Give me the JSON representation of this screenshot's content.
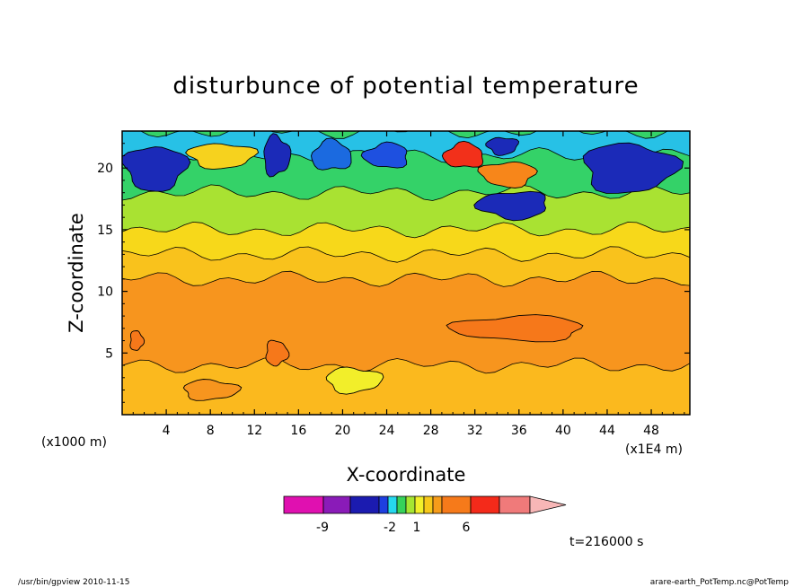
{
  "chart_data": {
    "type": "heatmap",
    "title": "disturbunce of potential temperature",
    "xlabel": "X-coordinate",
    "ylabel": "Z-coordinate",
    "x_ticks": [
      "4",
      "8",
      "12",
      "16",
      "20",
      "24",
      "28",
      "32",
      "36",
      "40",
      "44",
      "48"
    ],
    "x_tick_values": [
      4,
      8,
      12,
      16,
      20,
      24,
      28,
      32,
      36,
      40,
      44,
      48
    ],
    "xlim": [
      0,
      51.5
    ],
    "y_ticks": [
      "5",
      "10",
      "15",
      "20"
    ],
    "y_tick_values": [
      5,
      10,
      15,
      20
    ],
    "ylim": [
      0,
      23
    ],
    "x_unit_left": "(x1000 m)",
    "x_unit_right": "(x1E4 m)",
    "colorbar": {
      "labels": [
        {
          "text": "-9",
          "index": 1
        },
        {
          "text": "-2",
          "index": 4
        },
        {
          "text": "1",
          "index": 6
        },
        {
          "text": "6",
          "index": 8
        }
      ],
      "colors": [
        "#e010b0",
        "#8a1bb8",
        "#1b1bb0",
        "#1e3fe0",
        "#26d8ee",
        "#36d25a",
        "#a6e632",
        "#f2f02a",
        "#f7c81a",
        "#f69c1a",
        "#f67a1a",
        "#f42a1a",
        "#f07a7a",
        "#f7b6b6"
      ]
    },
    "field_bands": [
      {
        "z_top": 4,
        "level": 5,
        "color": "#fbb91e"
      },
      {
        "z_top": 11,
        "level": 4,
        "color": "#f7951e"
      },
      {
        "z_top": 13,
        "level": 3,
        "color": "#f9c21c"
      },
      {
        "z_top": 15,
        "level": 2,
        "color": "#f7d81a"
      },
      {
        "z_top": 18,
        "level": 1,
        "color": "#a9e232"
      },
      {
        "z_top": 21,
        "level": 0,
        "color": "#34d268"
      },
      {
        "z_top": 23,
        "level": -1,
        "color": "#27c1e6"
      }
    ],
    "features": [
      {
        "x": 3,
        "z": 20,
        "rx": 2.8,
        "rz": 1.8,
        "color": "#1b2ab8",
        "value": -6
      },
      {
        "x": 9,
        "z": 21,
        "rx": 3.0,
        "rz": 1.0,
        "color": "#f6d21e",
        "value": 1
      },
      {
        "x": 14,
        "z": 21,
        "rx": 1.2,
        "rz": 1.6,
        "color": "#1b2ab8",
        "value": -6
      },
      {
        "x": 19,
        "z": 21,
        "rx": 1.8,
        "rz": 1.2,
        "color": "#1b6ae0",
        "value": -4
      },
      {
        "x": 24,
        "z": 21,
        "rx": 2.0,
        "rz": 1.0,
        "color": "#1e50e0",
        "value": -4
      },
      {
        "x": 31,
        "z": 21,
        "rx": 1.8,
        "rz": 1.0,
        "color": "#f2301a",
        "value": 8
      },
      {
        "x": 35,
        "z": 19.5,
        "rx": 2.5,
        "rz": 1.0,
        "color": "#f7861a",
        "value": 5
      },
      {
        "x": 34.5,
        "z": 21.8,
        "rx": 1.4,
        "rz": 0.7,
        "color": "#1b2ab8",
        "value": -6
      },
      {
        "x": 35.5,
        "z": 17,
        "rx": 3.2,
        "rz": 1.1,
        "color": "#1b2ab8",
        "value": -6
      },
      {
        "x": 46,
        "z": 20,
        "rx": 4.2,
        "rz": 2.0,
        "color": "#1b2ab8",
        "value": -6
      },
      {
        "x": 36,
        "z": 7,
        "rx": 6,
        "rz": 1.0,
        "color": "#f6781a",
        "value": 5
      },
      {
        "x": 21,
        "z": 2.8,
        "rx": 2.5,
        "rz": 1.0,
        "color": "#f2ee2a",
        "value": 1
      },
      {
        "x": 8,
        "z": 2,
        "rx": 2.5,
        "rz": 0.8,
        "color": "#f7951e",
        "value": 4
      },
      {
        "x": 14,
        "z": 5,
        "rx": 1.0,
        "rz": 1.0,
        "color": "#f6781a",
        "value": 5
      },
      {
        "x": 1.3,
        "z": 6,
        "rx": 0.6,
        "rz": 0.8,
        "color": "#f6781a",
        "value": 5
      }
    ]
  },
  "time_label": "t=216000 s",
  "footer": {
    "left": "/usr/bin/gpview  2010-11-15",
    "right": "arare-earth_PotTemp.nc@PotTemp"
  }
}
